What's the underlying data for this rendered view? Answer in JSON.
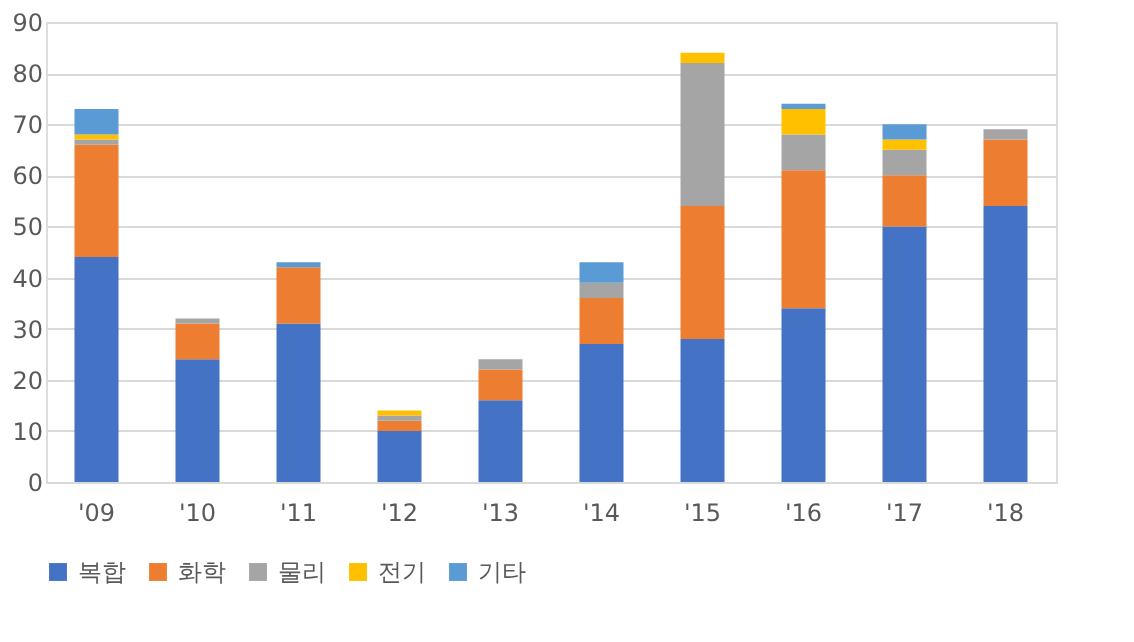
{
  "chart_data": {
    "type": "bar",
    "stacked": true,
    "categories": [
      "'09",
      "'10",
      "'11",
      "'12",
      "'13",
      "'14",
      "'15",
      "'16",
      "'17",
      "'18"
    ],
    "series": [
      {
        "name": "복합",
        "color": "#4472c4",
        "values": [
          44,
          24,
          31,
          10,
          16,
          27,
          28,
          34,
          50,
          54
        ]
      },
      {
        "name": "화학",
        "color": "#ed7d31",
        "values": [
          22,
          7,
          11,
          2,
          6,
          9,
          26,
          27,
          10,
          13
        ]
      },
      {
        "name": "물리",
        "color": "#a5a5a5",
        "values": [
          1,
          1,
          null,
          1,
          2,
          3,
          28,
          7,
          5,
          2
        ]
      },
      {
        "name": "전기",
        "color": "#ffc000",
        "values": [
          1,
          null,
          null,
          1,
          null,
          null,
          2,
          5,
          2,
          null
        ]
      },
      {
        "name": "기타",
        "color": "#5b9bd5",
        "values": [
          5,
          null,
          1,
          null,
          null,
          4,
          null,
          1,
          3,
          null
        ]
      }
    ],
    "ylim": [
      0,
      90
    ],
    "yticks": [
      0,
      10,
      20,
      30,
      40,
      50,
      60,
      70,
      80,
      90
    ],
    "grid": "y",
    "legend": "bottom"
  }
}
